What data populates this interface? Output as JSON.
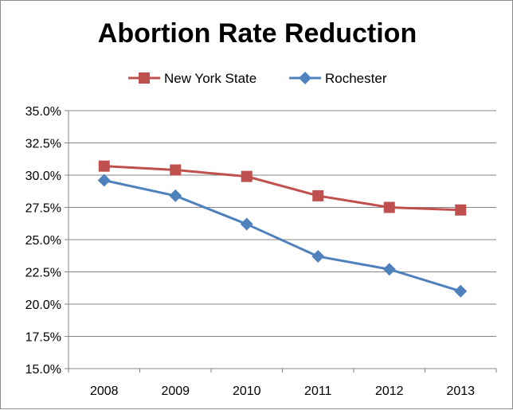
{
  "chart_data": {
    "type": "line",
    "title": "Abortion Rate Reduction",
    "xlabel": "",
    "ylabel": "",
    "categories": [
      "2008",
      "2009",
      "2010",
      "2011",
      "2012",
      "2013"
    ],
    "ylim": [
      0.15,
      0.35
    ],
    "yticks": [
      "15.0%",
      "17.5%",
      "20.0%",
      "22.5%",
      "25.0%",
      "27.5%",
      "30.0%",
      "32.5%",
      "35.0%"
    ],
    "ytick_values": [
      0.15,
      0.175,
      0.2,
      0.225,
      0.25,
      0.275,
      0.3,
      0.325,
      0.35
    ],
    "grid": "horizontal",
    "legend_position": "top",
    "series": [
      {
        "name": "New York State",
        "color": "#c0504d",
        "marker": "square",
        "values": [
          0.307,
          0.304,
          0.299,
          0.284,
          0.275,
          0.273
        ]
      },
      {
        "name": "Rochester",
        "color": "#4f81bd",
        "marker": "diamond",
        "values": [
          0.296,
          0.284,
          0.262,
          0.237,
          0.227,
          0.21
        ]
      }
    ]
  }
}
